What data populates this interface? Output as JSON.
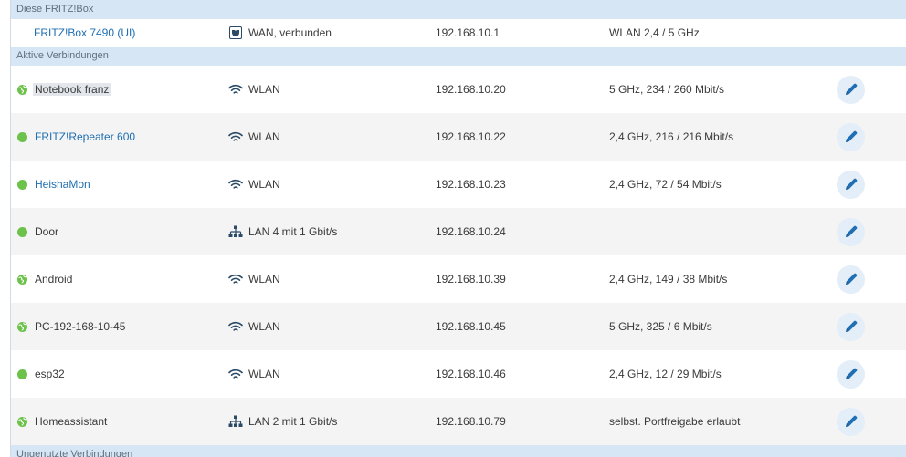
{
  "sections": {
    "this_box": "Diese FRITZ!Box",
    "active": "Aktive Verbindungen",
    "unused": "Ungenutzte Verbindungen"
  },
  "box": {
    "name": "FRITZ!Box 7490 (UI)",
    "connection": "WAN, verbunden",
    "ip": "192.168.10.1",
    "properties": "WLAN 2,4 / 5 GHz"
  },
  "devices": [
    {
      "name": "Notebook franz",
      "status": "globe",
      "conn_type": "wlan",
      "connection": "WLAN",
      "ip": "192.168.10.20",
      "properties": "5 GHz, 234 / 260 Mbit/s"
    },
    {
      "name": "FRITZ!Repeater 600",
      "status": "dot",
      "conn_type": "wlan",
      "connection": "WLAN",
      "ip": "192.168.10.22",
      "properties": "2,4 GHz, 216 / 216 Mbit/s"
    },
    {
      "name": "HeishaMon",
      "status": "dot",
      "conn_type": "wlan",
      "connection": "WLAN",
      "ip": "192.168.10.23",
      "properties": "2,4 GHz, 72 / 54 Mbit/s"
    },
    {
      "name": "Door",
      "status": "dot",
      "conn_type": "lan",
      "connection": "LAN 4 mit 1 Gbit/s",
      "ip": "192.168.10.24",
      "properties": ""
    },
    {
      "name": "Android",
      "status": "globe",
      "conn_type": "wlan",
      "connection": "WLAN",
      "ip": "192.168.10.39",
      "properties": "2,4 GHz, 149 / 38 Mbit/s"
    },
    {
      "name": "PC-192-168-10-45",
      "status": "globe",
      "conn_type": "wlan",
      "connection": "WLAN",
      "ip": "192.168.10.45",
      "properties": "5 GHz, 325 / 6 Mbit/s"
    },
    {
      "name": "esp32",
      "status": "dot",
      "conn_type": "wlan",
      "connection": "WLAN",
      "ip": "192.168.10.46",
      "properties": "2,4 GHz, 12 / 29 Mbit/s"
    },
    {
      "name": "Homeassistant",
      "status": "globe",
      "conn_type": "lan",
      "connection": "LAN 2 mit 1 Gbit/s",
      "ip": "192.168.10.79",
      "properties": "selbst. Portfreigabe erlaubt"
    }
  ],
  "icons": {
    "wan": "wan-icon",
    "wlan": "wifi-icon",
    "lan": "lan-network-icon",
    "edit": "pencil-icon",
    "status_dot": "online-dot-icon",
    "status_globe": "internet-globe-icon"
  },
  "colors": {
    "section_bg": "#d6e6f4",
    "link": "#1f6fb2",
    "online": "#6cc24a",
    "edit_bg": "#e3eef9",
    "edit_icon": "#1f6fb2"
  }
}
